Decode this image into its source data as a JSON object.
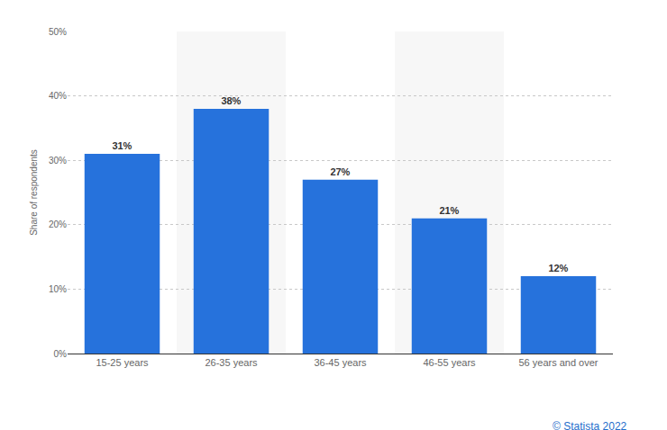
{
  "chart_data": {
    "type": "bar",
    "y_label": "Share of respondents",
    "categories": [
      "15-25 years",
      "26-35 years",
      "36-45 years",
      "46-55 years",
      "56 years and over"
    ],
    "values": [
      31,
      38,
      27,
      21,
      12
    ],
    "value_labels": [
      "31%",
      "38%",
      "27%",
      "21%",
      "12%"
    ],
    "data_labels": true,
    "color": "#2672dc",
    "ylim": [
      0,
      50
    ],
    "yticks": [
      {
        "value": 0,
        "label": "0%"
      },
      {
        "value": 10,
        "label": "10%"
      },
      {
        "value": 20,
        "label": "20%"
      },
      {
        "value": 30,
        "label": "30%"
      },
      {
        "value": 40,
        "label": "40%"
      },
      {
        "value": 50,
        "label": "50%"
      }
    ],
    "grid": true,
    "annotations": [
      "© Statista 2022"
    ]
  }
}
